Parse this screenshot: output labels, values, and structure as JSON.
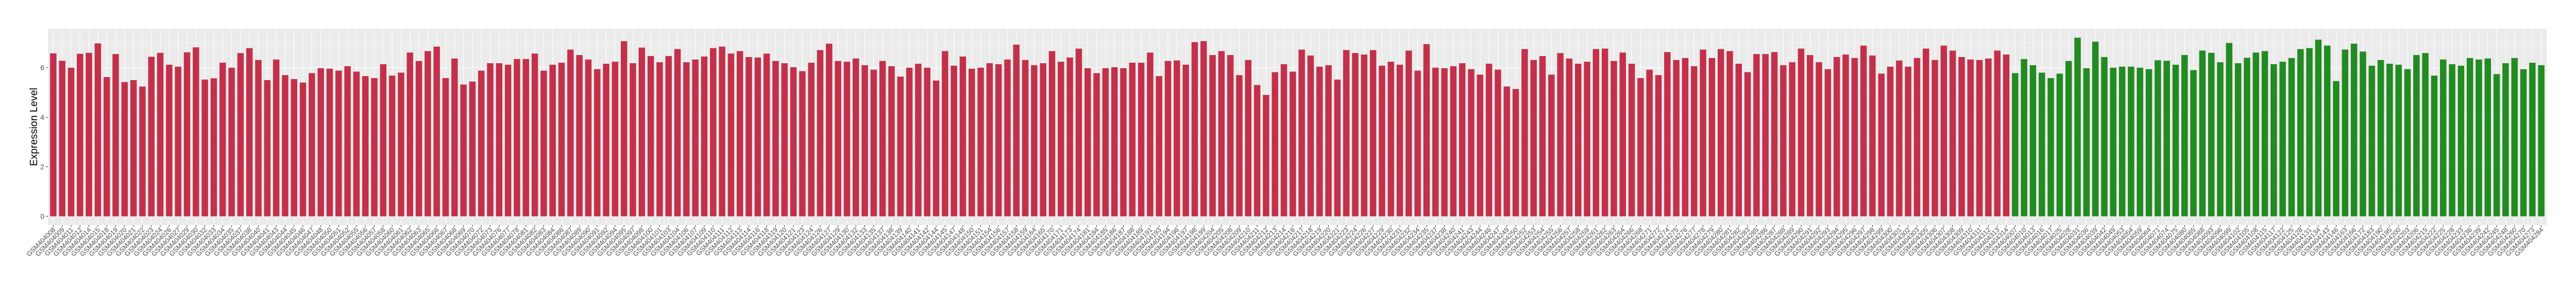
{
  "chart_data": {
    "type": "bar",
    "title": "",
    "xlabel": "",
    "ylabel": "Expression Level",
    "ylim": [
      -0.35,
      7.57
    ],
    "yticks": [
      0,
      2,
      4,
      6
    ],
    "grid": true,
    "legend": "none",
    "panel_background": "#EBEBEB",
    "series": [
      {
        "color": "#C3304A",
        "categories": [
          "GSM404008",
          "GSM404009",
          "GSM404011",
          "GSM404012",
          "GSM404014",
          "GSM404015",
          "GSM404018",
          "GSM404019",
          "GSM404020",
          "GSM404021",
          "GSM404022",
          "GSM404023",
          "GSM404024",
          "GSM404026",
          "GSM404027",
          "GSM404029",
          "GSM404030",
          "GSM404032",
          "GSM404033",
          "GSM404034",
          "GSM404035",
          "GSM404037",
          "GSM404038",
          "GSM404040",
          "GSM404041",
          "GSM404043",
          "GSM404044",
          "GSM404045",
          "GSM404046",
          "GSM404047",
          "GSM404048",
          "GSM404050",
          "GSM404051",
          "GSM404052",
          "GSM404055",
          "GSM404056",
          "GSM404057",
          "GSM404058",
          "GSM404060",
          "GSM404061",
          "GSM404062",
          "GSM404063",
          "GSM404065",
          "GSM404066",
          "GSM404067",
          "GSM404068",
          "GSM404069",
          "GSM404070",
          "GSM404072",
          "GSM404073",
          "GSM404076",
          "GSM404077",
          "GSM404078",
          "GSM404081",
          "GSM404082",
          "GSM404083",
          "GSM404084",
          "GSM404086",
          "GSM404087",
          "GSM404089",
          "GSM404090",
          "GSM404091",
          "GSM404092",
          "GSM404094",
          "GSM404095",
          "GSM404097",
          "GSM404098",
          "GSM404100",
          "GSM404101",
          "GSM404103",
          "GSM404104",
          "GSM404106",
          "GSM404107",
          "GSM404109",
          "GSM404110",
          "GSM404111",
          "GSM404112",
          "GSM404113",
          "GSM404114",
          "GSM404116",
          "GSM404118",
          "GSM404119",
          "GSM404120",
          "GSM404121",
          "GSM404123",
          "GSM404124",
          "GSM404126",
          "GSM404127",
          "GSM404129",
          "GSM404130",
          "GSM404132",
          "GSM404133",
          "GSM404135",
          "GSM404137",
          "GSM404138",
          "GSM404139",
          "GSM404140",
          "GSM404141",
          "GSM404142",
          "GSM404144",
          "GSM404145",
          "GSM404147",
          "GSM404148",
          "GSM404150",
          "GSM404151",
          "GSM404154",
          "GSM404156",
          "GSM404157",
          "GSM404158",
          "GSM404159",
          "GSM404164",
          "GSM404165",
          "GSM404170",
          "GSM404171",
          "GSM404173",
          "GSM404174",
          "GSM404181",
          "GSM404184",
          "GSM404185",
          "GSM404186",
          "GSM404187",
          "GSM404188",
          "GSM404189",
          "GSM404191",
          "GSM404193",
          "GSM404194",
          "GSM404196",
          "GSM404197",
          "GSM404198",
          "GSM404199",
          "GSM404204",
          "GSM404205",
          "GSM404208",
          "GSM404209",
          "GSM404210",
          "GSM404211",
          "GSM404212",
          "GSM404213",
          "GSM404214",
          "GSM404216",
          "GSM404217",
          "GSM404218",
          "GSM404219",
          "GSM404220",
          "GSM404221",
          "GSM404223",
          "GSM404224",
          "GSM404226",
          "GSM404227",
          "GSM404229",
          "GSM404230",
          "GSM404231",
          "GSM404232",
          "GSM404234",
          "GSM404235",
          "GSM404237",
          "GSM404238",
          "GSM404240",
          "GSM404241",
          "GSM404243",
          "GSM404244",
          "GSM404246",
          "GSM404247",
          "GSM404249",
          "GSM404250",
          "GSM404252",
          "GSM404253",
          "GSM404254",
          "GSM404255",
          "GSM404256",
          "GSM404257",
          "GSM404258",
          "GSM404259",
          "GSM404261",
          "GSM404262",
          "GSM404263",
          "GSM404264",
          "GSM404266",
          "GSM404268",
          "GSM404271",
          "GSM404272",
          "GSM404274",
          "GSM404275",
          "GSM404276",
          "GSM404277",
          "GSM404278",
          "GSM404279",
          "GSM404280",
          "GSM404281",
          "GSM404282",
          "GSM404283",
          "GSM404285",
          "GSM404286",
          "GSM404287",
          "GSM404288",
          "GSM404289",
          "GSM404290",
          "GSM404291",
          "GSM404292",
          "GSM404293",
          "GSM404294",
          "GSM404295",
          "GSM404296",
          "GSM404297",
          "GSM404298",
          "GSM404299",
          "GSM404300",
          "GSM404301",
          "GSM404302",
          "GSM404303",
          "GSM404305",
          "GSM404306",
          "GSM404307",
          "GSM404308",
          "GSM404309",
          "GSM404310",
          "GSM404311",
          "GSM404312",
          "GSM404313",
          "GSM404314"
        ],
        "values": [
          6.58,
          6.28,
          6.0,
          6.56,
          6.6,
          6.98,
          5.62,
          6.55,
          5.42,
          5.5,
          5.24,
          6.44,
          6.6,
          6.12,
          6.04,
          6.62,
          6.82,
          5.52,
          5.57,
          6.2,
          6.0,
          6.59,
          6.79,
          6.31,
          5.5,
          6.33,
          5.7,
          5.54,
          5.4,
          5.78,
          5.98,
          5.96,
          5.88,
          6.06,
          5.84,
          5.66,
          5.58,
          6.14,
          5.68,
          5.8,
          6.61,
          6.27,
          6.67,
          6.85,
          5.58,
          6.37,
          5.32,
          5.44,
          5.88,
          6.18,
          6.18,
          6.12,
          6.35,
          6.35,
          6.57,
          5.88,
          6.12,
          6.2,
          6.73,
          6.51,
          6.33,
          5.94,
          6.16,
          6.24,
          7.07,
          6.18,
          6.81,
          6.47,
          6.22,
          6.47,
          6.75,
          6.22,
          6.33,
          6.45,
          6.79,
          6.85,
          6.57,
          6.67,
          6.43,
          6.41,
          6.57,
          6.27,
          6.18,
          6.02,
          5.86,
          6.2,
          6.71,
          6.97,
          6.27,
          6.24,
          6.37,
          6.1,
          5.92,
          6.27,
          6.06,
          5.64,
          6.0,
          6.16,
          6.0,
          5.48,
          6.67,
          6.08,
          6.45,
          5.96,
          6.0,
          6.18,
          6.14,
          6.33,
          6.93,
          6.31,
          6.1,
          6.18,
          6.67,
          6.24,
          6.41,
          6.77,
          5.98,
          5.78,
          5.98,
          6.02,
          5.98,
          6.2,
          6.2,
          6.61,
          5.66,
          6.27,
          6.29,
          6.12,
          7.03,
          7.07,
          6.51,
          6.67,
          6.51,
          5.7,
          6.31,
          5.3,
          4.9,
          5.82,
          6.14,
          5.84,
          6.73,
          6.49,
          6.04,
          6.1,
          5.52,
          6.71,
          6.59,
          6.53,
          6.71,
          6.08,
          6.24,
          6.12,
          6.69,
          5.88,
          6.95,
          6.0,
          5.98,
          6.06,
          6.18,
          5.94,
          5.72,
          6.16,
          5.92,
          5.24,
          5.14,
          6.75,
          6.31,
          6.47,
          5.72,
          6.59,
          6.37,
          6.16,
          6.24,
          6.75,
          6.77,
          6.27,
          6.61,
          6.16,
          5.58,
          5.92,
          5.7,
          6.63,
          6.31,
          6.39,
          6.06,
          6.73,
          6.39,
          6.75,
          6.67,
          6.16,
          5.82,
          6.55,
          6.55,
          6.63,
          6.1,
          6.22,
          6.77,
          6.51,
          6.22,
          5.94,
          6.43,
          6.53,
          6.39,
          6.89,
          6.49,
          5.76,
          6.04,
          6.29,
          6.04,
          6.39,
          6.77,
          6.31,
          6.89,
          6.69,
          6.43,
          6.33,
          6.31,
          6.37,
          6.69,
          6.53
        ]
      },
      {
        "color": "#228B22",
        "categories": [
          "GSM404007",
          "GSM404010",
          "GSM404013",
          "GSM404016",
          "GSM404017",
          "GSM404025",
          "GSM404028",
          "GSM404031",
          "GSM404036",
          "GSM404039",
          "GSM404042",
          "GSM404049",
          "GSM404053",
          "GSM404054",
          "GSM404059",
          "GSM404064",
          "GSM404071",
          "GSM404074",
          "GSM404075",
          "GSM404080",
          "GSM404085",
          "GSM404088",
          "GSM404093",
          "GSM404096",
          "GSM404099",
          "GSM404102",
          "GSM404105",
          "GSM404108",
          "GSM404115",
          "GSM404117",
          "GSM404122",
          "GSM404125",
          "GSM404128",
          "GSM404131",
          "GSM404134",
          "GSM404143",
          "GSM404146",
          "GSM404163",
          "GSM404166",
          "GSM404172",
          "GSM404183",
          "GSM404190",
          "GSM404195",
          "GSM404200",
          "GSM404203",
          "GSM404206",
          "GSM404215",
          "GSM404222",
          "GSM404225",
          "GSM404228",
          "GSM404233",
          "GSM404236",
          "GSM404239",
          "GSM404242",
          "GSM404245",
          "GSM404248",
          "GSM404260",
          "GSM404270",
          "GSM404273",
          "GSM404284"
        ],
        "values": [
          5.78,
          6.35,
          6.1,
          5.8,
          5.58,
          5.76,
          6.27,
          7.21,
          5.98,
          7.05,
          6.43,
          6.0,
          6.04,
          6.04,
          6.0,
          5.94,
          6.3,
          6.28,
          6.12,
          6.51,
          5.9,
          6.69,
          6.6,
          6.22,
          7.0,
          6.18,
          6.4,
          6.61,
          6.67,
          6.14,
          6.24,
          6.39,
          6.75,
          6.79,
          7.13,
          6.89,
          5.46,
          6.73,
          6.97,
          6.65,
          6.08,
          6.31,
          6.16,
          6.12,
          5.94,
          6.51,
          6.59,
          5.68,
          6.33,
          6.14,
          6.08,
          6.39,
          6.33,
          6.37,
          5.74,
          6.18,
          6.39,
          5.94,
          6.2,
          6.1
        ]
      }
    ]
  }
}
